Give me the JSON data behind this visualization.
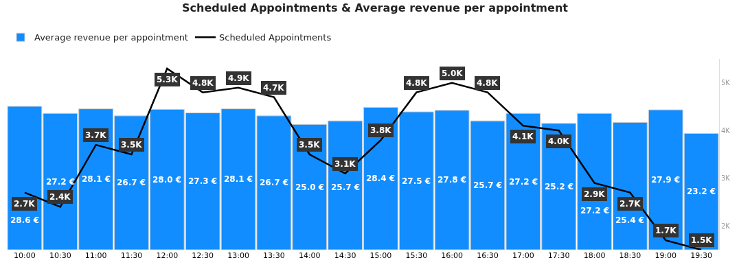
{
  "chart_data": {
    "type": "bar",
    "title": "Scheduled Appointments & Average revenue per appointment",
    "categories": [
      "10:00",
      "10:30",
      "11:00",
      "11:30",
      "12:00",
      "12:30",
      "13:00",
      "13:30",
      "14:00",
      "14:30",
      "15:00",
      "15:30",
      "16:00",
      "16:30",
      "17:00",
      "17:30",
      "18:00",
      "18:30",
      "19:00",
      "19:30"
    ],
    "series": [
      {
        "name": "Average revenue per appointment",
        "color": "#118dff",
        "values": [
          28.6,
          27.2,
          28.1,
          26.7,
          28.0,
          27.3,
          28.1,
          26.7,
          25.0,
          25.7,
          28.4,
          27.5,
          27.8,
          25.7,
          27.2,
          25.2,
          27.2,
          25.4,
          27.9,
          23.2
        ],
        "value_labels": [
          "28.6 €",
          "27.2 €",
          "28.1 €",
          "26.7 €",
          "28.0 €",
          "27.3 €",
          "28.1 €",
          "26.7 €",
          "25.0 €",
          "25.7 €",
          "28.4 €",
          "27.5 €",
          "27.8 €",
          "25.7 €",
          "27.2 €",
          "25.2 €",
          "27.2 €",
          "25.4 €",
          "27.9 €",
          "23.2 €"
        ]
      },
      {
        "name": "Scheduled Appointments",
        "type": "line",
        "axis": "y2",
        "color": "#000000",
        "values": [
          2700,
          2400,
          3700,
          3500,
          5300,
          4800,
          4900,
          4700,
          3500,
          3100,
          3800,
          4800,
          5000,
          4800,
          4100,
          4000,
          2900,
          2700,
          1700,
          1500
        ],
        "value_labels": [
          "2.7K",
          "2.4K",
          "3.7K",
          "3.5K",
          "5.3K",
          "4.8K",
          "4.9K",
          "4.7K",
          "3.5K",
          "3.1K",
          "3.8K",
          "4.8K",
          "5.0K",
          "4.8K",
          "4.1K",
          "4.0K",
          "2.9K",
          "2.7K",
          "1.7K",
          "1.5K"
        ]
      }
    ],
    "y2lim": [
      1500,
      5500
    ],
    "y2ticks": [
      {
        "value": 2000,
        "label": "2K"
      },
      {
        "value": 3000,
        "label": "3K"
      },
      {
        "value": 4000,
        "label": "4K"
      },
      {
        "value": 5000,
        "label": "5K"
      }
    ],
    "legend": "top left",
    "line_style": "solid"
  }
}
